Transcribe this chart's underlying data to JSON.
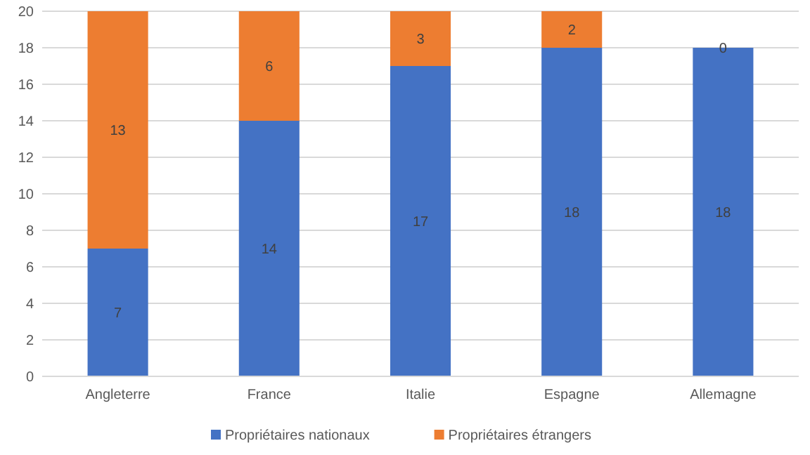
{
  "chart_data": {
    "type": "bar",
    "stacked": true,
    "categories": [
      "Angleterre",
      "France",
      "Italie",
      "Espagne",
      "Allemagne"
    ],
    "series": [
      {
        "name": "Propriétaires nationaux",
        "color": "#4472c4",
        "values": [
          7,
          14,
          17,
          18,
          18
        ]
      },
      {
        "name": "Propriétaires étrangers",
        "color": "#ed7d31",
        "values": [
          13,
          6,
          3,
          2,
          0
        ]
      }
    ],
    "ylim": [
      0,
      20
    ],
    "yticks": [
      0,
      2,
      4,
      6,
      8,
      10,
      12,
      14,
      16,
      18,
      20
    ],
    "grid": "y",
    "legend": "bottom",
    "data_labels": true
  }
}
